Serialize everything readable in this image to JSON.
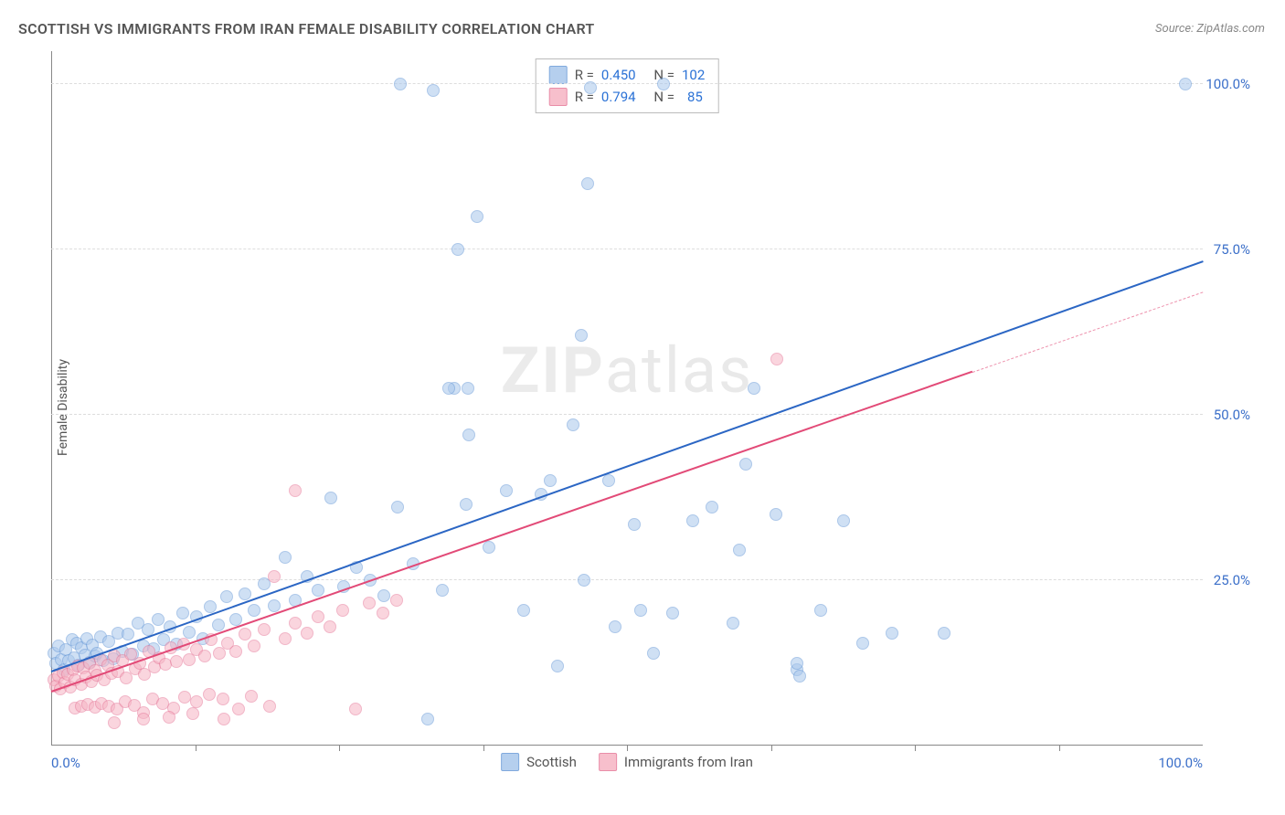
{
  "title": "SCOTTISH VS IMMIGRANTS FROM IRAN FEMALE DISABILITY CORRELATION CHART",
  "source": "Source: ZipAtlas.com",
  "y_axis_label": "Female Disability",
  "watermark_zip": "ZIP",
  "watermark_atlas": "atlas",
  "chart": {
    "type": "scatter",
    "xlim": [
      0,
      100
    ],
    "ylim": [
      0,
      105
    ],
    "x_ticks": [
      0,
      100
    ],
    "x_tick_labels": [
      "0.0%",
      "100.0%"
    ],
    "x_minor_ticks": [
      12.5,
      25,
      37.5,
      50,
      62.5,
      75,
      87.5
    ],
    "y_ticks": [
      25,
      50,
      75,
      100
    ],
    "y_tick_labels": [
      "25.0%",
      "50.0%",
      "75.0%",
      "100.0%"
    ],
    "background_color": "#ffffff",
    "grid_color": "#dddddd",
    "marker_radius": 7,
    "series": [
      {
        "name": "Scottish",
        "fill": "#a9c7ec",
        "fill_opacity": 0.55,
        "stroke": "#6a9bd8",
        "trend_color": "#2b66c4",
        "trend": {
          "x0": 0,
          "y0": 11,
          "x1": 100,
          "y1": 73,
          "solid_until_x": 100
        },
        "R": "0.450",
        "N": "102",
        "points": [
          [
            0.2,
            14
          ],
          [
            0.4,
            12.5
          ],
          [
            0.6,
            15
          ],
          [
            0.9,
            13
          ],
          [
            1.1,
            11.5
          ],
          [
            1.3,
            14.5
          ],
          [
            1.5,
            12.8
          ],
          [
            1.8,
            16
          ],
          [
            2.0,
            13.2
          ],
          [
            2.2,
            15.5
          ],
          [
            2.4,
            12.2
          ],
          [
            2.6,
            14.8
          ],
          [
            2.9,
            13.7
          ],
          [
            3.1,
            16.2
          ],
          [
            3.3,
            12.6
          ],
          [
            3.6,
            15.2
          ],
          [
            3.8,
            13.5
          ],
          [
            4.0,
            14.0
          ],
          [
            4.3,
            16.5
          ],
          [
            4.5,
            12.9
          ],
          [
            5.0,
            15.8
          ],
          [
            5.4,
            13.1
          ],
          [
            5.8,
            17.0
          ],
          [
            6.2,
            14.3
          ],
          [
            6.7,
            16.8
          ],
          [
            7.1,
            13.8
          ],
          [
            7.5,
            18.5
          ],
          [
            8.0,
            15.0
          ],
          [
            8.4,
            17.5
          ],
          [
            8.9,
            14.6
          ],
          [
            9.3,
            19.1
          ],
          [
            9.8,
            16.0
          ],
          [
            10.3,
            18.0
          ],
          [
            10.9,
            15.4
          ],
          [
            11.4,
            20.0
          ],
          [
            12.0,
            17.2
          ],
          [
            12.6,
            19.5
          ],
          [
            13.2,
            16.2
          ],
          [
            13.8,
            21.0
          ],
          [
            14.5,
            18.3
          ],
          [
            15.2,
            22.5
          ],
          [
            16.0,
            19.0
          ],
          [
            16.8,
            23.0
          ],
          [
            17.6,
            20.5
          ],
          [
            18.5,
            24.5
          ],
          [
            19.4,
            21.2
          ],
          [
            20.3,
            28.5
          ],
          [
            21.2,
            22.0
          ],
          [
            22.2,
            25.5
          ],
          [
            23.2,
            23.5
          ],
          [
            24.3,
            37.5
          ],
          [
            25.4,
            24.0
          ],
          [
            26.5,
            27.0
          ],
          [
            27.7,
            25.0
          ],
          [
            28.9,
            22.7
          ],
          [
            30.1,
            36.0
          ],
          [
            30.3,
            100
          ],
          [
            31.4,
            27.5
          ],
          [
            32.7,
            4.0
          ],
          [
            33.2,
            99
          ],
          [
            34.0,
            23.5
          ],
          [
            35.0,
            54.0
          ],
          [
            36.0,
            36.5
          ],
          [
            35.3,
            75.0
          ],
          [
            36.3,
            47.0
          ],
          [
            37.0,
            80.0
          ],
          [
            38.0,
            30.0
          ],
          [
            39.5,
            38.5
          ],
          [
            41.0,
            20.5
          ],
          [
            42.5,
            38.0
          ],
          [
            43.3,
            40.0
          ],
          [
            44.0,
            12.0
          ],
          [
            45.3,
            48.5
          ],
          [
            46.0,
            62.0
          ],
          [
            46.3,
            25.0
          ],
          [
            46.6,
            85.0
          ],
          [
            48.4,
            40.0
          ],
          [
            46.8,
            99.5
          ],
          [
            49.0,
            18.0
          ],
          [
            50.6,
            33.5
          ],
          [
            51.2,
            20.5
          ],
          [
            52.3,
            14.0
          ],
          [
            53.2,
            100
          ],
          [
            54.0,
            20.0
          ],
          [
            55.7,
            34.0
          ],
          [
            57.4,
            36.0
          ],
          [
            59.2,
            18.5
          ],
          [
            59.8,
            29.5
          ],
          [
            61.0,
            54.0
          ],
          [
            60.3,
            42.5
          ],
          [
            62.9,
            35.0
          ],
          [
            64.8,
            11.5
          ],
          [
            66.8,
            20.5
          ],
          [
            68.8,
            34.0
          ],
          [
            70.5,
            15.5
          ],
          [
            73.0,
            17.0
          ],
          [
            77.5,
            17.0
          ],
          [
            65.0,
            10.5
          ],
          [
            64.8,
            12.5
          ],
          [
            98.5,
            100
          ],
          [
            34.5,
            54.0
          ],
          [
            36.2,
            54.0
          ]
        ]
      },
      {
        "name": "Immigrants from Iran",
        "fill": "#f6b4c4",
        "fill_opacity": 0.55,
        "stroke": "#e67a9a",
        "trend_color": "#e24a77",
        "trend": {
          "x0": 0,
          "y0": 8,
          "x1": 100,
          "y1": 68.5,
          "solid_until_x": 80
        },
        "R": "0.794",
        "N": "85",
        "points": [
          [
            0.2,
            10
          ],
          [
            0.4,
            9
          ],
          [
            0.6,
            10.5
          ],
          [
            0.8,
            8.5
          ],
          [
            1.0,
            11
          ],
          [
            1.2,
            9.5
          ],
          [
            1.4,
            10.8
          ],
          [
            1.7,
            8.8
          ],
          [
            1.9,
            11.5
          ],
          [
            2.1,
            10.0
          ],
          [
            2.3,
            12.0
          ],
          [
            2.6,
            9.2
          ],
          [
            2.8,
            11.8
          ],
          [
            3.0,
            10.3
          ],
          [
            3.3,
            12.5
          ],
          [
            3.5,
            9.7
          ],
          [
            3.8,
            11.3
          ],
          [
            4.0,
            10.6
          ],
          [
            4.3,
            13.0
          ],
          [
            4.6,
            9.9
          ],
          [
            4.9,
            12.2
          ],
          [
            5.2,
            10.9
          ],
          [
            5.5,
            13.5
          ],
          [
            5.8,
            11.2
          ],
          [
            6.2,
            12.8
          ],
          [
            6.5,
            10.2
          ],
          [
            6.9,
            13.8
          ],
          [
            7.3,
            11.6
          ],
          [
            7.7,
            12.5
          ],
          [
            8.1,
            10.8
          ],
          [
            8.5,
            14.2
          ],
          [
            9.0,
            11.9
          ],
          [
            9.4,
            13.2
          ],
          [
            9.9,
            12.3
          ],
          [
            10.4,
            14.8
          ],
          [
            10.9,
            12.7
          ],
          [
            11.5,
            15.3
          ],
          [
            12.0,
            13.0
          ],
          [
            12.6,
            14.5
          ],
          [
            13.3,
            13.5
          ],
          [
            13.9,
            16.0
          ],
          [
            14.6,
            14.0
          ],
          [
            15.3,
            15.5
          ],
          [
            16.0,
            14.3
          ],
          [
            16.8,
            16.8
          ],
          [
            17.6,
            15.0
          ],
          [
            18.5,
            17.5
          ],
          [
            19.0,
            6.0
          ],
          [
            19.4,
            25.5
          ],
          [
            20.3,
            16.2
          ],
          [
            21.2,
            18.5
          ],
          [
            22.2,
            17.0
          ],
          [
            23.2,
            19.5
          ],
          [
            24.2,
            18.0
          ],
          [
            25.3,
            20.5
          ],
          [
            26.4,
            5.5
          ],
          [
            27.6,
            21.5
          ],
          [
            28.8,
            20.0
          ],
          [
            30.0,
            22.0
          ],
          [
            21.2,
            38.5
          ],
          [
            2.1,
            5.6
          ],
          [
            2.6,
            6.0
          ],
          [
            3.2,
            6.2
          ],
          [
            3.8,
            5.8
          ],
          [
            4.4,
            6.4
          ],
          [
            5.0,
            6.0
          ],
          [
            5.7,
            5.5
          ],
          [
            6.4,
            6.7
          ],
          [
            7.2,
            6.1
          ],
          [
            8.0,
            5.0
          ],
          [
            8.8,
            7.0
          ],
          [
            9.7,
            6.3
          ],
          [
            10.6,
            5.7
          ],
          [
            11.6,
            7.3
          ],
          [
            12.6,
            6.6
          ],
          [
            13.7,
            7.8
          ],
          [
            14.9,
            7.0
          ],
          [
            15.0,
            4.0
          ],
          [
            17.4,
            7.4
          ],
          [
            16.3,
            5.5
          ],
          [
            12.3,
            4.8
          ],
          [
            10.2,
            4.3
          ],
          [
            8.0,
            4.0
          ],
          [
            5.5,
            3.5
          ],
          [
            63.0,
            58.5
          ]
        ]
      }
    ]
  },
  "legend": {
    "r_label": "R =",
    "n_label": "N ="
  },
  "bottom_legend": {
    "s1_label": "Scottish",
    "s2_label": "Immigrants from Iran"
  }
}
